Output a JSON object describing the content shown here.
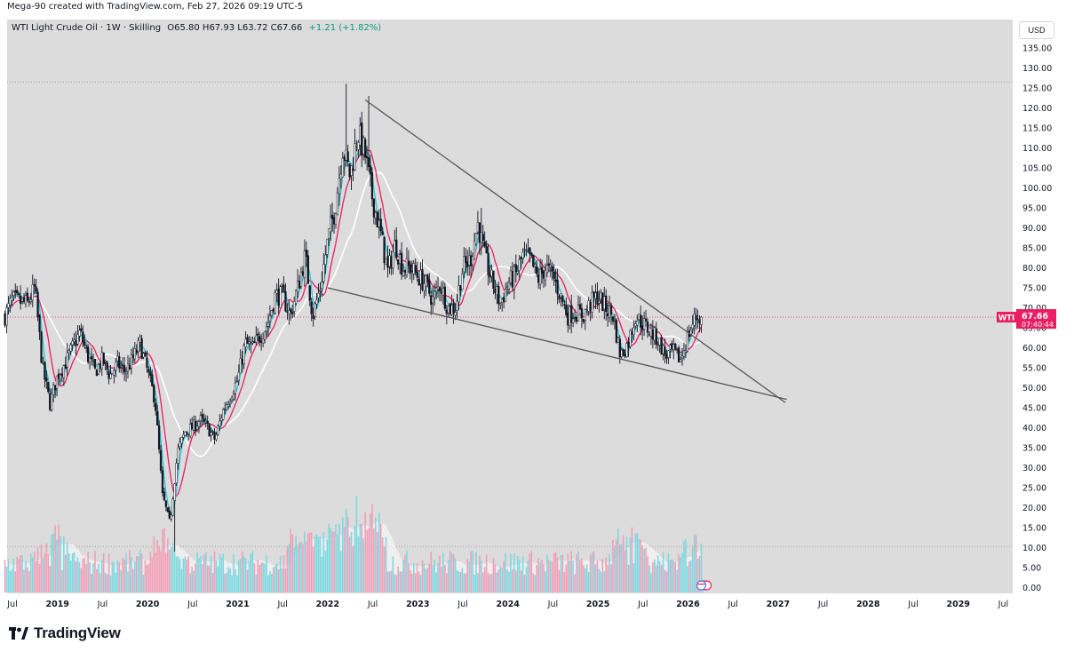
{
  "header": {
    "caption": "Mega-90 created with TradingView.com, Feb 27, 2026 09:19 UTC-5",
    "symbol_line": "WTI Light Crude Oil · 1W · Skilling",
    "ohlc": "O65.80 H67.93 L63.72 C67.66",
    "change": "+1.21 (+1.82%)",
    "currency_button": "USD"
  },
  "price_tag": {
    "symbol": "WTI",
    "price": "67.66",
    "countdown": "07:40:44"
  },
  "brand": {
    "name": "TradingView"
  },
  "colors": {
    "background": "#dcdcdc",
    "up_candle": "#131722",
    "down_candle": "#131722",
    "ma_fast": "#26c6da",
    "ma_mid": "#e91e63",
    "ma_slow": "#ffffff",
    "trendline": "#555555",
    "vol_up": "#7fd8e0",
    "vol_down": "#f0a0b8",
    "price_tag": "#e91e63"
  },
  "chart_data": {
    "type": "candlestick",
    "title": "WTI Light Crude Oil · 1W · Skilling",
    "y_axis": {
      "side": "right",
      "min": 0,
      "max": 135,
      "step": 5,
      "tick_labels": [
        "0.00",
        "5.00",
        "10.00",
        "15.00",
        "20.00",
        "25.00",
        "30.00",
        "35.00",
        "40.00",
        "45.00",
        "50.00",
        "55.00",
        "60.00",
        "65.00",
        "70.00",
        "75.00",
        "80.00",
        "85.00",
        "90.00",
        "95.00",
        "100.00",
        "105.00",
        "110.00",
        "115.00",
        "120.00",
        "125.00",
        "130.00",
        "135.00"
      ]
    },
    "x_axis": {
      "tick_labels": [
        {
          "label": "Jul",
          "date": "2018-07",
          "bold": false
        },
        {
          "label": "2019",
          "date": "2019-01",
          "bold": true
        },
        {
          "label": "Jul",
          "date": "2019-07",
          "bold": false
        },
        {
          "label": "2020",
          "date": "2020-01",
          "bold": true
        },
        {
          "label": "Jul",
          "date": "2020-07",
          "bold": false
        },
        {
          "label": "2021",
          "date": "2021-01",
          "bold": true
        },
        {
          "label": "Jul",
          "date": "2021-07",
          "bold": false
        },
        {
          "label": "2022",
          "date": "2022-01",
          "bold": true
        },
        {
          "label": "Jul",
          "date": "2022-07",
          "bold": false
        },
        {
          "label": "2023",
          "date": "2023-01",
          "bold": true
        },
        {
          "label": "Jul",
          "date": "2023-07",
          "bold": false
        },
        {
          "label": "2024",
          "date": "2024-01",
          "bold": true
        },
        {
          "label": "Jul",
          "date": "2024-07",
          "bold": false
        },
        {
          "label": "2025",
          "date": "2025-01",
          "bold": true
        },
        {
          "label": "Jul",
          "date": "2025-07",
          "bold": false
        },
        {
          "label": "2026",
          "date": "2026-01",
          "bold": true
        },
        {
          "label": "Jul",
          "date": "2026-07",
          "bold": false
        },
        {
          "label": "2027",
          "date": "2027-01",
          "bold": true
        },
        {
          "label": "Jul",
          "date": "2027-07",
          "bold": false
        },
        {
          "label": "2028",
          "date": "2028-01",
          "bold": true
        },
        {
          "label": "Jul",
          "date": "2028-07",
          "bold": false
        },
        {
          "label": "2029",
          "date": "2029-01",
          "bold": true
        },
        {
          "label": "Jul",
          "date": "2029-07",
          "bold": false
        }
      ]
    },
    "close_anchors": [
      [
        "2018-06",
        68
      ],
      [
        "2018-07",
        72
      ],
      [
        "2018-09",
        71
      ],
      [
        "2018-10",
        75
      ],
      [
        "2018-11",
        55
      ],
      [
        "2018-12",
        46
      ],
      [
        "2019-01",
        53
      ],
      [
        "2019-02",
        56
      ],
      [
        "2019-04",
        64
      ],
      [
        "2019-05",
        58
      ],
      [
        "2019-06",
        54
      ],
      [
        "2019-07",
        57
      ],
      [
        "2019-08",
        53
      ],
      [
        "2019-09",
        56
      ],
      [
        "2019-10",
        54
      ],
      [
        "2019-11",
        57
      ],
      [
        "2019-12",
        61
      ],
      [
        "2020-01",
        54
      ],
      [
        "2020-02",
        47
      ],
      [
        "2020-03",
        23
      ],
      [
        "2020-04",
        16
      ],
      [
        "2020-05",
        34
      ],
      [
        "2020-06",
        39
      ],
      [
        "2020-07",
        40
      ],
      [
        "2020-08",
        42
      ],
      [
        "2020-09",
        40
      ],
      [
        "2020-10",
        37
      ],
      [
        "2020-11",
        44
      ],
      [
        "2020-12",
        48
      ],
      [
        "2021-01",
        52
      ],
      [
        "2021-02",
        61
      ],
      [
        "2021-03",
        60
      ],
      [
        "2021-04",
        63
      ],
      [
        "2021-05",
        66
      ],
      [
        "2021-06",
        73
      ],
      [
        "2021-07",
        73
      ],
      [
        "2021-08",
        68
      ],
      [
        "2021-09",
        75
      ],
      [
        "2021-10",
        83
      ],
      [
        "2021-11",
        68
      ],
      [
        "2021-12",
        75
      ],
      [
        "2022-01",
        87
      ],
      [
        "2022-02",
        95
      ],
      [
        "2022-03",
        110
      ],
      [
        "2022-04",
        103
      ],
      [
        "2022-05",
        114
      ],
      [
        "2022-06",
        108
      ],
      [
        "2022-07",
        97
      ],
      [
        "2022-08",
        89
      ],
      [
        "2022-09",
        79
      ],
      [
        "2022-10",
        86
      ],
      [
        "2022-11",
        80
      ],
      [
        "2022-12",
        80
      ],
      [
        "2023-01",
        78
      ],
      [
        "2023-02",
        76
      ],
      [
        "2023-03",
        72
      ],
      [
        "2023-04",
        76
      ],
      [
        "2023-05",
        70
      ],
      [
        "2023-06",
        70
      ],
      [
        "2023-07",
        80
      ],
      [
        "2023-08",
        82
      ],
      [
        "2023-09",
        91
      ],
      [
        "2023-10",
        82
      ],
      [
        "2023-11",
        76
      ],
      [
        "2023-12",
        71
      ],
      [
        "2024-01",
        76
      ],
      [
        "2024-02",
        78
      ],
      [
        "2024-03",
        83
      ],
      [
        "2024-04",
        82
      ],
      [
        "2024-05",
        77
      ],
      [
        "2024-06",
        80
      ],
      [
        "2024-07",
        78
      ],
      [
        "2024-08",
        73
      ],
      [
        "2024-09",
        68
      ],
      [
        "2024-10",
        69
      ],
      [
        "2024-11",
        68
      ],
      [
        "2024-12",
        71
      ],
      [
        "2025-01",
        73
      ],
      [
        "2025-02",
        70
      ],
      [
        "2025-03",
        68
      ],
      [
        "2025-04",
        58
      ],
      [
        "2025-05",
        61
      ],
      [
        "2025-06",
        68
      ],
      [
        "2025-07",
        66
      ],
      [
        "2025-08",
        64
      ],
      [
        "2025-09",
        62
      ],
      [
        "2025-10",
        58
      ],
      [
        "2025-11",
        59
      ],
      [
        "2025-12",
        57
      ],
      [
        "2026-01",
        63
      ],
      [
        "2026-02",
        67.66
      ]
    ],
    "last_bar": {
      "date": "2026-02-27",
      "open": 65.8,
      "high": 67.93,
      "low": 63.72,
      "close": 67.66,
      "change": 1.21,
      "change_pct": 1.82
    },
    "notable_extremes": [
      {
        "date": "2020-04",
        "low": 9
      },
      {
        "date": "2022-03",
        "high": 126
      },
      {
        "date": "2022-06",
        "high": 123
      },
      {
        "date": "2023-09",
        "high": 95
      }
    ],
    "horizontal_lines": [
      {
        "value": 126.5,
        "style": "dotted"
      },
      {
        "value": 67.66,
        "style": "dotted",
        "color": "#e91e63"
      },
      {
        "value": 10.3,
        "style": "dotted"
      }
    ],
    "trendlines": [
      {
        "name": "upper",
        "from": {
          "date": "2022-06",
          "value": 122
        },
        "to": {
          "date": "2027-01",
          "value": 47.6
        }
      },
      {
        "name": "lower",
        "from": {
          "date": "2022-01",
          "value": 75
        },
        "to": {
          "date": "2027-01",
          "value": 47.6
        }
      }
    ],
    "moving_averages": [
      {
        "color": "#26c6da",
        "length_weeks": 4
      },
      {
        "color": "#e91e63",
        "length_weeks": 10
      },
      {
        "color": "#ffffff",
        "length_weeks": 26
      }
    ],
    "volume": {
      "scale_max": 14,
      "peak_dates": [
        "2018-12",
        "2020-03",
        "2022-03",
        "2022-06",
        "2025-04",
        "2025-06",
        "2026-01"
      ]
    }
  }
}
